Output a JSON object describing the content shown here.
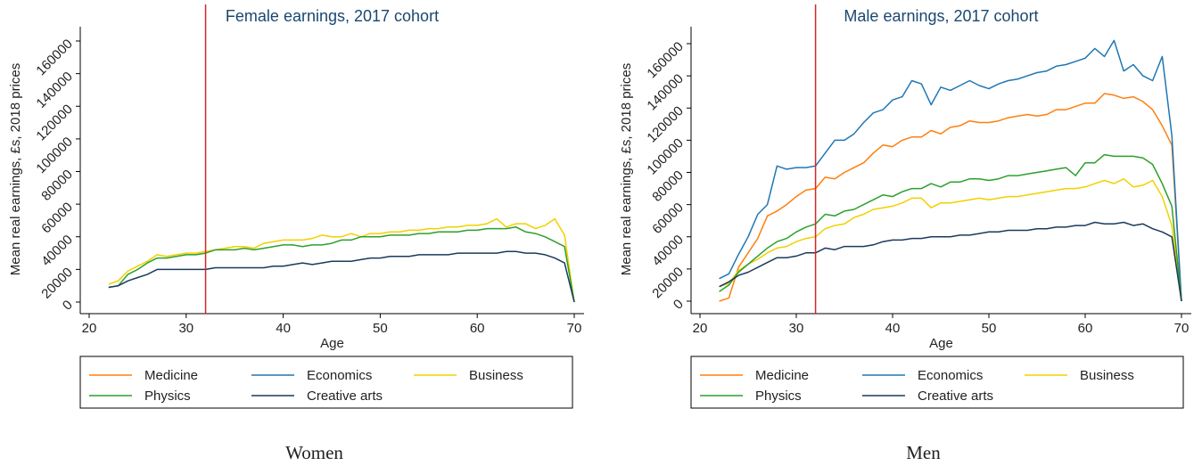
{
  "chart_data": [
    {
      "type": "line",
      "title": "Female earnings, 2017 cohort",
      "caption": "Women",
      "xlabel": "Age",
      "ylabel": "Mean real earnings, £s, 2018 prices",
      "xlim": [
        20,
        70
      ],
      "ylim": [
        0,
        160000
      ],
      "xticks": [
        20,
        30,
        40,
        50,
        60,
        70
      ],
      "yticks": [
        0,
        20000,
        40000,
        60000,
        80000,
        100000,
        120000,
        140000,
        160000
      ],
      "grid": false,
      "vline": 32,
      "vline_color": "#d62728",
      "x": [
        22,
        23,
        24,
        25,
        26,
        27,
        28,
        29,
        30,
        31,
        32,
        33,
        34,
        35,
        36,
        37,
        38,
        39,
        40,
        41,
        42,
        43,
        44,
        45,
        46,
        47,
        48,
        49,
        50,
        51,
        52,
        53,
        54,
        55,
        56,
        57,
        58,
        59,
        60,
        61,
        62,
        63,
        64,
        65,
        66,
        67,
        68,
        69,
        70
      ],
      "series": [
        {
          "name": "Medicine",
          "color": "#ff7f0e",
          "values": [
            null,
            null,
            null,
            null,
            null,
            null,
            null,
            null,
            null,
            null,
            null,
            null,
            null,
            null,
            null,
            null,
            null,
            null,
            null,
            null,
            null,
            null,
            null,
            null,
            null,
            null,
            null,
            null,
            null,
            null,
            null,
            null,
            null,
            null,
            null,
            null,
            null,
            null,
            null,
            null,
            null,
            null,
            null,
            null,
            null,
            null,
            null,
            null,
            null
          ]
        },
        {
          "name": "Economics",
          "color": "#1f77b4",
          "values": [
            null,
            null,
            null,
            null,
            null,
            null,
            null,
            null,
            null,
            null,
            null,
            null,
            null,
            null,
            null,
            null,
            null,
            null,
            null,
            null,
            null,
            null,
            null,
            null,
            null,
            null,
            null,
            null,
            null,
            null,
            null,
            null,
            null,
            null,
            null,
            null,
            null,
            null,
            null,
            null,
            null,
            null,
            null,
            null,
            null,
            null,
            null,
            null,
            null
          ]
        },
        {
          "name": "Business",
          "color": "#f2d000",
          "values": [
            11000,
            13000,
            19000,
            22000,
            25000,
            29000,
            28000,
            29000,
            30000,
            30000,
            31000,
            32000,
            33000,
            34000,
            34000,
            33000,
            36000,
            37000,
            38000,
            38000,
            38000,
            39000,
            41000,
            40000,
            40000,
            42000,
            40000,
            42000,
            42000,
            43000,
            43000,
            44000,
            44000,
            45000,
            45000,
            46000,
            46000,
            47000,
            47000,
            48000,
            51000,
            46000,
            48000,
            48000,
            45000,
            47000,
            51000,
            41000,
            0
          ]
        },
        {
          "name": "Physics",
          "color": "#2ca02c",
          "values": [
            9000,
            10000,
            17000,
            20000,
            24000,
            27000,
            27000,
            28000,
            29000,
            29000,
            30000,
            32000,
            32000,
            32000,
            33000,
            32000,
            33000,
            34000,
            35000,
            35000,
            34000,
            35000,
            35000,
            36000,
            38000,
            38000,
            40000,
            40000,
            40000,
            41000,
            41000,
            41000,
            42000,
            42000,
            43000,
            43000,
            43000,
            44000,
            44000,
            45000,
            45000,
            45000,
            46000,
            43000,
            42000,
            40000,
            37000,
            34000,
            0
          ]
        },
        {
          "name": "Creative arts",
          "color": "#1b3a5c",
          "values": [
            9000,
            10000,
            13000,
            15000,
            17000,
            20000,
            20000,
            20000,
            20000,
            20000,
            20000,
            21000,
            21000,
            21000,
            21000,
            21000,
            21000,
            22000,
            22000,
            23000,
            24000,
            23000,
            24000,
            25000,
            25000,
            25000,
            26000,
            27000,
            27000,
            28000,
            28000,
            28000,
            29000,
            29000,
            29000,
            29000,
            30000,
            30000,
            30000,
            30000,
            30000,
            31000,
            31000,
            30000,
            30000,
            29000,
            27000,
            24000,
            0
          ]
        }
      ]
    },
    {
      "type": "line",
      "title": "Male earnings, 2017 cohort",
      "caption": "Men",
      "xlabel": "Age",
      "ylabel": "Mean real earnings, £s, 2018 prices",
      "xlim": [
        20,
        70
      ],
      "ylim": [
        0,
        160000
      ],
      "xticks": [
        20,
        30,
        40,
        50,
        60,
        70
      ],
      "yticks": [
        0,
        20000,
        40000,
        60000,
        80000,
        100000,
        120000,
        140000,
        160000
      ],
      "grid": false,
      "vline": 32,
      "vline_color": "#d62728",
      "x": [
        22,
        23,
        24,
        25,
        26,
        27,
        28,
        29,
        30,
        31,
        32,
        33,
        34,
        35,
        36,
        37,
        38,
        39,
        40,
        41,
        42,
        43,
        44,
        45,
        46,
        47,
        48,
        49,
        50,
        51,
        52,
        53,
        54,
        55,
        56,
        57,
        58,
        59,
        60,
        61,
        62,
        63,
        64,
        65,
        66,
        67,
        68,
        69,
        70
      ],
      "series": [
        {
          "name": "Medicine",
          "color": "#ff7f0e",
          "values": [
            0,
            2000,
            21000,
            30000,
            39000,
            53000,
            56000,
            60000,
            65000,
            69000,
            70000,
            77000,
            76000,
            80000,
            83000,
            86000,
            92000,
            97000,
            96000,
            100000,
            102000,
            102000,
            106000,
            104000,
            108000,
            109000,
            112000,
            111000,
            111000,
            112000,
            114000,
            115000,
            116000,
            115000,
            116000,
            119000,
            119000,
            121000,
            123000,
            123000,
            129000,
            128000,
            126000,
            127000,
            124000,
            119000,
            109000,
            97000,
            0
          ]
        },
        {
          "name": "Economics",
          "color": "#1f77b4",
          "values": [
            14000,
            17000,
            29000,
            40000,
            54000,
            60000,
            84000,
            82000,
            83000,
            83000,
            84000,
            92000,
            100000,
            100000,
            104000,
            111000,
            117000,
            119000,
            125000,
            127000,
            137000,
            135000,
            122000,
            133000,
            131000,
            134000,
            137000,
            134000,
            132000,
            135000,
            137000,
            138000,
            140000,
            142000,
            143000,
            146000,
            147000,
            149000,
            151000,
            157000,
            152000,
            162000,
            143000,
            147000,
            140000,
            137000,
            152000,
            103000,
            0
          ]
        },
        {
          "name": "Business",
          "color": "#f2d000",
          "values": [
            9000,
            11000,
            19000,
            23000,
            26000,
            30000,
            33000,
            34000,
            37000,
            39000,
            40000,
            45000,
            47000,
            48000,
            52000,
            54000,
            57000,
            58000,
            59000,
            61000,
            64000,
            64000,
            58000,
            61000,
            61000,
            62000,
            63000,
            64000,
            63000,
            64000,
            65000,
            65000,
            66000,
            67000,
            68000,
            69000,
            70000,
            70000,
            71000,
            73000,
            75000,
            73000,
            76000,
            71000,
            72000,
            75000,
            65000,
            47000,
            0
          ]
        },
        {
          "name": "Physics",
          "color": "#2ca02c",
          "values": [
            6000,
            10000,
            18000,
            23000,
            28000,
            33000,
            37000,
            39000,
            43000,
            46000,
            48000,
            54000,
            53000,
            56000,
            57000,
            60000,
            63000,
            66000,
            65000,
            68000,
            70000,
            70000,
            73000,
            71000,
            74000,
            74000,
            76000,
            76000,
            75000,
            76000,
            78000,
            78000,
            79000,
            80000,
            81000,
            82000,
            83000,
            78000,
            86000,
            86000,
            91000,
            90000,
            90000,
            90000,
            89000,
            85000,
            73000,
            59000,
            0
          ]
        },
        {
          "name": "Creative arts",
          "color": "#1b3a5c",
          "values": [
            9000,
            12000,
            16000,
            18000,
            21000,
            24000,
            27000,
            27000,
            28000,
            30000,
            30000,
            33000,
            32000,
            34000,
            34000,
            34000,
            35000,
            37000,
            38000,
            38000,
            39000,
            39000,
            40000,
            40000,
            40000,
            41000,
            41000,
            42000,
            43000,
            43000,
            44000,
            44000,
            44000,
            45000,
            45000,
            46000,
            46000,
            47000,
            47000,
            49000,
            48000,
            48000,
            49000,
            47000,
            48000,
            45000,
            43000,
            40000,
            0
          ]
        }
      ]
    }
  ]
}
